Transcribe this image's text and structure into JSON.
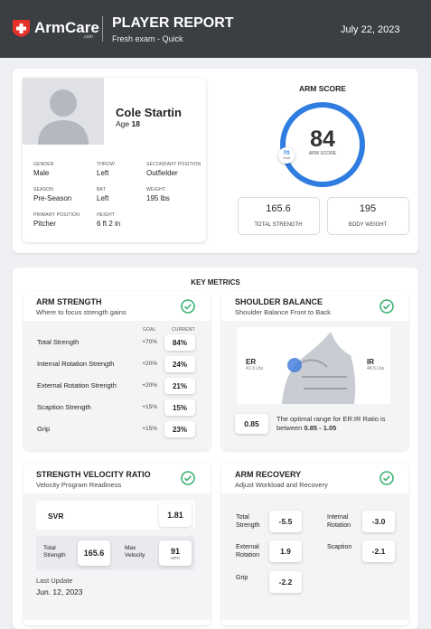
{
  "header": {
    "logo": "ArmCare",
    "logo_suffix": ".com",
    "title": "PLAYER REPORT",
    "subtitle": "Fresh exam - Quick",
    "date": "July 22, 2023"
  },
  "profile": {
    "name": "Cole Startin",
    "age_label": "Age",
    "age": "18",
    "fields": [
      {
        "label": "GENDER",
        "value": "Male"
      },
      {
        "label": "THROW",
        "value": "Left"
      },
      {
        "label": "SECONDARY POSITION",
        "value": "Outfielder"
      },
      {
        "label": "SEASON",
        "value": "Pre-Season"
      },
      {
        "label": "BAT",
        "value": "Left"
      },
      {
        "label": "WEIGHT",
        "value": "195 lbs"
      },
      {
        "label": "PRIMARY POSITION",
        "value": "Pitcher"
      },
      {
        "label": "HEIGHT",
        "value": "6 ft 2 in"
      }
    ]
  },
  "arm_score": {
    "title": "ARM SCORE",
    "score": "84",
    "score_label": "ARM SCORE",
    "goal": "70",
    "goal_label": "Goal",
    "stats": [
      {
        "value": "165.6",
        "label": "TOTAL STRENGTH"
      },
      {
        "value": "195",
        "label": "BODY WEIGHT"
      }
    ]
  },
  "key_metrics": {
    "title": "KEY METRICS",
    "arm_strength": {
      "title": "ARM STRENGTH",
      "subtitle": "Where to focus strength gains",
      "goal_header": "GOAL",
      "current_header": "CURRENT",
      "rows": [
        {
          "label": "Total Strength",
          "goal": "+70%",
          "current": "84%"
        },
        {
          "label": "Internal Rotation Strength",
          "goal": "+20%",
          "current": "24%"
        },
        {
          "label": "External Rotation Strength",
          "goal": "+20%",
          "current": "21%"
        },
        {
          "label": "Scaption Strength",
          "goal": "+15%",
          "current": "15%"
        },
        {
          "label": "Grip",
          "goal": "+15%",
          "current": "23%"
        }
      ]
    },
    "shoulder_balance": {
      "title": "SHOULDER BALANCE",
      "subtitle": "Shoulder Balance Front to Back",
      "er_label": "ER",
      "er_value": "41.3 Lbs",
      "ir_label": "IR",
      "ir_value": "48.5 Lbs",
      "ratio": "0.85",
      "note": "The optimal range for ER:IR Ratio is between ",
      "note_range": "0.85 - 1.05"
    },
    "svr": {
      "title": "STRENGTH VELOCITY RATIO",
      "subtitle": "Velocity Program Readiness",
      "svr_label": "SVR",
      "svr_value": "1.81",
      "total_strength_label": "Total Strength",
      "total_strength": "165.6",
      "max_velocity_label": "Max Velocity",
      "max_velocity": "91",
      "max_velocity_unit": "MPH",
      "last_update_label": "Last Update",
      "last_update": "Jun. 12, 2023"
    },
    "arm_recovery": {
      "title": "ARM RECOVERY",
      "subtitle": "Adjust Workload and Recovery",
      "items": [
        {
          "label": "Total Strength",
          "value": "-5.5"
        },
        {
          "label": "Internal Rotation",
          "value": "-3.0"
        },
        {
          "label": "External Rotation",
          "value": "1.9"
        },
        {
          "label": "Scaption",
          "value": "-2.1"
        },
        {
          "label": "Grip",
          "value": "-2.2"
        }
      ]
    }
  }
}
